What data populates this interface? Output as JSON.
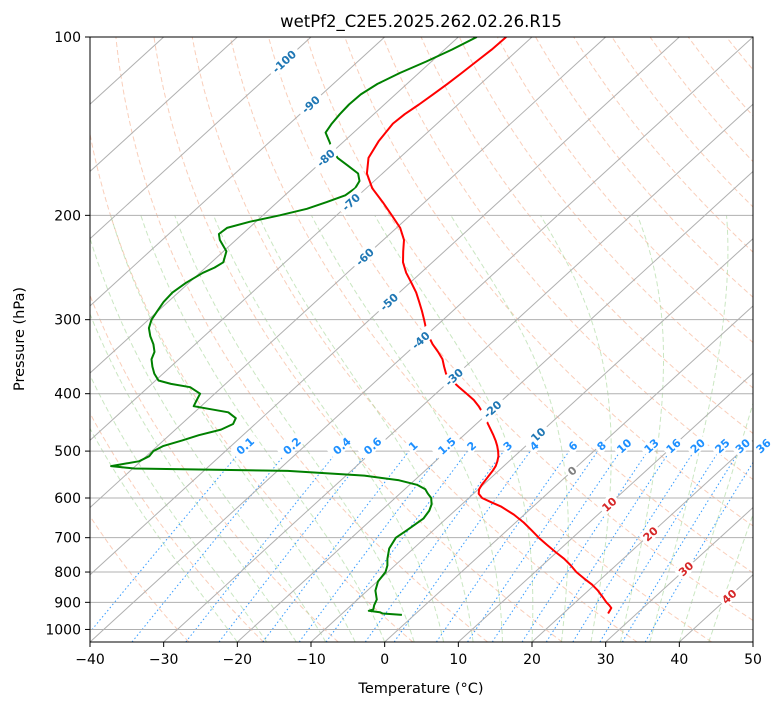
{
  "chart_data": {
    "type": "skew-t log-p",
    "title": "wetPf2_C2E5.2025.262.02.26.R15",
    "xlabel": "Temperature (°C)",
    "ylabel": "Pressure (hPa)",
    "xlim": [
      -40,
      50
    ],
    "ylim": [
      1050,
      100
    ],
    "x_ticks": [
      "−40",
      "−30",
      "−20",
      "−10",
      "0",
      "10",
      "20",
      "30",
      "40",
      "50"
    ],
    "y_ticks": [
      {
        "p": 100,
        "label": "100"
      },
      {
        "p": 200,
        "label": "200"
      },
      {
        "p": 300,
        "label": "300"
      },
      {
        "p": 400,
        "label": "400"
      },
      {
        "p": 500,
        "label": "500"
      },
      {
        "p": 600,
        "label": "600"
      },
      {
        "p": 700,
        "label": "700"
      },
      {
        "p": 800,
        "label": "800"
      },
      {
        "p": 900,
        "label": "900"
      },
      {
        "p": 1000,
        "label": "1000"
      }
    ],
    "grid": true,
    "series": [
      {
        "color": "#ff0000",
        "points": [
          [
            100,
            -73.5
          ],
          [
            105,
            -73.6
          ],
          [
            110,
            -73.9
          ],
          [
            115,
            -74.2
          ],
          [
            120,
            -74.5
          ],
          [
            125,
            -74.9
          ],
          [
            130,
            -75.3
          ],
          [
            135,
            -75.8
          ],
          [
            140,
            -76.0
          ],
          [
            150,
            -75.3
          ],
          [
            160,
            -74.2
          ],
          [
            170,
            -72.1
          ],
          [
            180,
            -69.2
          ],
          [
            190,
            -65.7
          ],
          [
            200,
            -62.5
          ],
          [
            210,
            -59.5
          ],
          [
            220,
            -57.2
          ],
          [
            230,
            -55.6
          ],
          [
            240,
            -54.0
          ],
          [
            250,
            -52.0
          ],
          [
            260,
            -49.8
          ],
          [
            270,
            -47.7
          ],
          [
            280,
            -45.9
          ],
          [
            290,
            -44.2
          ],
          [
            300,
            -42.6
          ],
          [
            310,
            -41.1
          ],
          [
            320,
            -39.5
          ],
          [
            330,
            -37.8
          ],
          [
            340,
            -35.9
          ],
          [
            350,
            -34.2
          ],
          [
            360,
            -32.9
          ],
          [
            370,
            -31.6
          ],
          [
            380,
            -29.8
          ],
          [
            390,
            -27.8
          ],
          [
            400,
            -25.8
          ],
          [
            410,
            -23.9
          ],
          [
            420,
            -22.3
          ],
          [
            430,
            -20.9
          ],
          [
            440,
            -19.6
          ],
          [
            450,
            -18.4
          ],
          [
            460,
            -17.2
          ],
          [
            470,
            -16.0
          ],
          [
            480,
            -14.9
          ],
          [
            490,
            -13.9
          ],
          [
            500,
            -13.0
          ],
          [
            510,
            -12.2
          ],
          [
            520,
            -11.6
          ],
          [
            530,
            -11.1
          ],
          [
            540,
            -10.8
          ],
          [
            550,
            -10.6
          ],
          [
            560,
            -10.4
          ],
          [
            570,
            -10.2
          ],
          [
            580,
            -9.9
          ],
          [
            590,
            -9.3
          ],
          [
            600,
            -8.2
          ],
          [
            610,
            -6.3
          ],
          [
            620,
            -4.4
          ],
          [
            640,
            -1.4
          ],
          [
            660,
            1.1
          ],
          [
            680,
            3.3
          ],
          [
            700,
            5.4
          ],
          [
            720,
            7.6
          ],
          [
            740,
            9.8
          ],
          [
            760,
            12.0
          ],
          [
            780,
            13.9
          ],
          [
            800,
            15.6
          ],
          [
            820,
            17.6
          ],
          [
            840,
            19.6
          ],
          [
            860,
            21.3
          ],
          [
            880,
            22.8
          ],
          [
            900,
            24.2
          ],
          [
            910,
            25.0
          ],
          [
            920,
            25.7
          ],
          [
            930,
            25.9
          ],
          [
            940,
            26.1
          ]
        ]
      },
      {
        "color": "#008000",
        "points": [
          [
            100,
            -77.5
          ],
          [
            105,
            -79.0
          ],
          [
            110,
            -80.7
          ],
          [
            115,
            -82.6
          ],
          [
            120,
            -84.0
          ],
          [
            125,
            -84.7
          ],
          [
            130,
            -84.8
          ],
          [
            135,
            -84.6
          ],
          [
            140,
            -84.3
          ],
          [
            145,
            -83.8
          ],
          [
            150,
            -82.0
          ],
          [
            155,
            -80.3
          ],
          [
            160,
            -78.4
          ],
          [
            165,
            -75.8
          ],
          [
            170,
            -73.3
          ],
          [
            175,
            -72.0
          ],
          [
            180,
            -71.5
          ],
          [
            185,
            -71.8
          ],
          [
            190,
            -73.3
          ],
          [
            195,
            -75.0
          ],
          [
            200,
            -77.7
          ],
          [
            205,
            -80.8
          ],
          [
            210,
            -83.0
          ],
          [
            215,
            -83.2
          ],
          [
            220,
            -82.2
          ],
          [
            230,
            -79.6
          ],
          [
            240,
            -78.4
          ],
          [
            245,
            -78.8
          ],
          [
            250,
            -79.6
          ],
          [
            260,
            -80.4
          ],
          [
            270,
            -80.8
          ],
          [
            280,
            -80.6
          ],
          [
            290,
            -80.1
          ],
          [
            300,
            -79.6
          ],
          [
            310,
            -78.7
          ],
          [
            320,
            -77.3
          ],
          [
            330,
            -75.7
          ],
          [
            340,
            -74.4
          ],
          [
            350,
            -73.7
          ],
          [
            360,
            -72.5
          ],
          [
            370,
            -71.2
          ],
          [
            380,
            -69.6
          ],
          [
            385,
            -67.4
          ],
          [
            390,
            -64.3
          ],
          [
            400,
            -62.0
          ],
          [
            410,
            -61.5
          ],
          [
            420,
            -61.0
          ],
          [
            430,
            -55.4
          ],
          [
            440,
            -53.5
          ],
          [
            450,
            -53.0
          ],
          [
            460,
            -53.8
          ],
          [
            470,
            -56.0
          ],
          [
            480,
            -57.5
          ],
          [
            490,
            -59.2
          ],
          [
            500,
            -59.8
          ],
          [
            510,
            -59.6
          ],
          [
            520,
            -60.2
          ],
          [
            530,
            -63.3
          ],
          [
            535,
            -59.8
          ],
          [
            540,
            -38.6
          ],
          [
            550,
            -27.5
          ],
          [
            560,
            -22.1
          ],
          [
            570,
            -19.0
          ],
          [
            580,
            -17.2
          ],
          [
            590,
            -16.2
          ],
          [
            600,
            -15.1
          ],
          [
            615,
            -14.1
          ],
          [
            630,
            -13.5
          ],
          [
            650,
            -13.1
          ],
          [
            680,
            -13.6
          ],
          [
            700,
            -14.0
          ],
          [
            730,
            -13.3
          ],
          [
            760,
            -12.0
          ],
          [
            780,
            -11.0
          ],
          [
            800,
            -10.3
          ],
          [
            830,
            -9.9
          ],
          [
            860,
            -8.9
          ],
          [
            890,
            -7.4
          ],
          [
            910,
            -6.9
          ],
          [
            925,
            -6.4
          ],
          [
            930,
            -6.8
          ],
          [
            935,
            -5.1
          ],
          [
            940,
            -4.5
          ],
          [
            945,
            -1.7
          ]
        ]
      }
    ],
    "dry_adiabat_labels": [
      {
        "text": "-100",
        "T": -100,
        "p": 110
      },
      {
        "text": "-90",
        "T": -90,
        "p": 130
      },
      {
        "text": "-80",
        "T": -80,
        "p": 160
      },
      {
        "text": "-70",
        "T": -70,
        "p": 190
      },
      {
        "text": "-60",
        "T": -60,
        "p": 235
      },
      {
        "text": "-50",
        "T": -50,
        "p": 280
      },
      {
        "text": "-40",
        "T": -40,
        "p": 325
      },
      {
        "text": "-30",
        "T": -30,
        "p": 375
      },
      {
        "text": "-20",
        "T": -20,
        "p": 425
      },
      {
        "text": "-10",
        "T": -10,
        "p": 472
      },
      {
        "text": "0",
        "T": 0,
        "p": 540
      }
    ],
    "moist_adiabat_labels": [
      {
        "text": "10",
        "T": 10,
        "p": 615
      },
      {
        "text": "20",
        "T": 20,
        "p": 690
      },
      {
        "text": "30",
        "T": 30,
        "p": 790
      },
      {
        "text": "40",
        "T": 40,
        "p": 880
      }
    ],
    "mixing_ratio_labels": [
      "0.1",
      "0.2",
      "0.4",
      "0.6",
      "1",
      "1.5",
      "2",
      "3",
      "4",
      "6",
      "8",
      "10",
      "13",
      "16",
      "20",
      "25",
      "30",
      "36"
    ],
    "colors": {
      "temperature": "#ff0000",
      "dewpoint": "#008000",
      "dry_adiabat": "#f4a582",
      "moist_adiabat": "#a6d69a",
      "mixing_ratio": "#1e90ff",
      "dry_label": "#1f77b4",
      "moist_label": "#d62728",
      "zero_label": "#808080",
      "grid": "#b0b0b0"
    }
  }
}
